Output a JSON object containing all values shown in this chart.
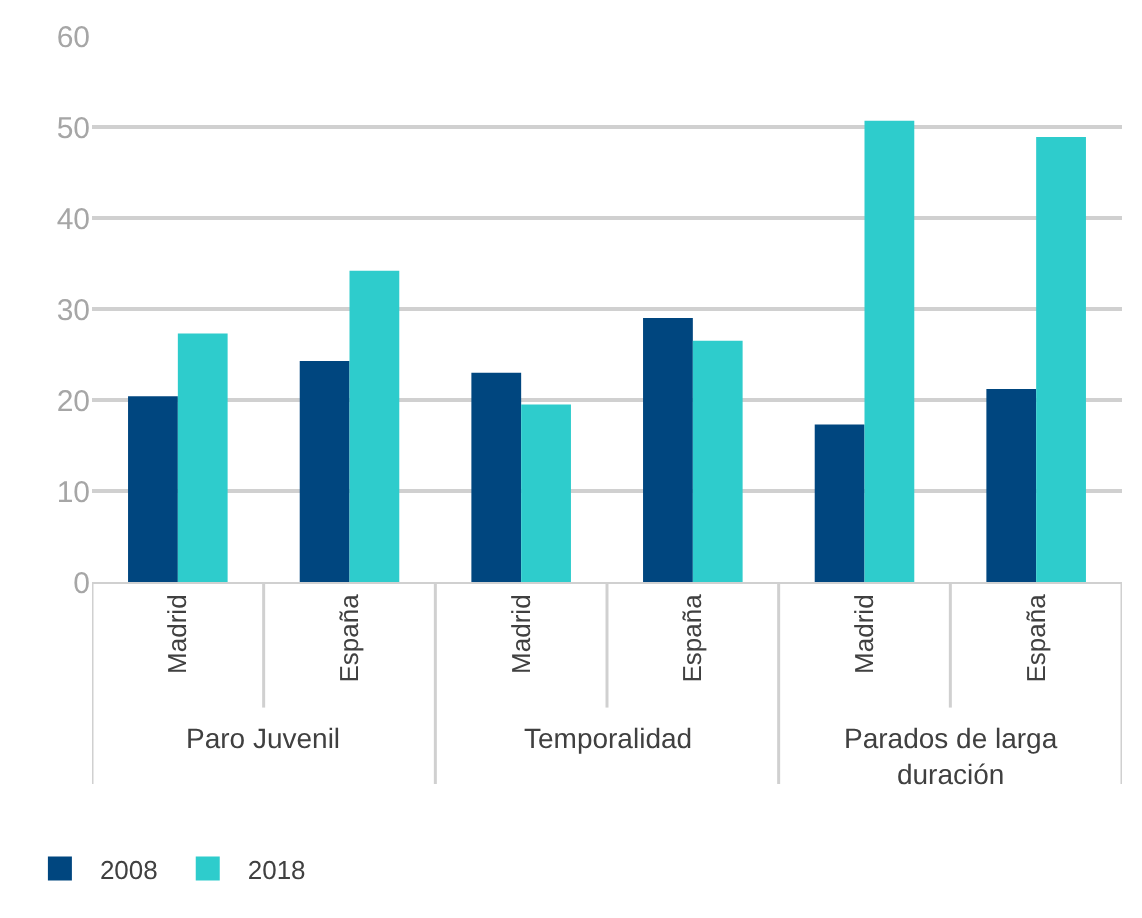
{
  "chart_data": {
    "type": "bar",
    "categories": [
      "Madrid",
      "España",
      "Madrid",
      "España",
      "Madrid",
      "España"
    ],
    "annotations": [
      "Paro Juvenil",
      "Temporalidad",
      "Parados de larga duración"
    ],
    "series": [
      {
        "name": "2008",
        "color": "#00467f",
        "values": [
          20.4,
          24.3,
          23.0,
          29.0,
          17.3,
          21.2
        ]
      },
      {
        "name": "2018",
        "color": "#2ecccc",
        "values": [
          27.3,
          34.2,
          19.5,
          26.5,
          50.7,
          48.9
        ]
      }
    ],
    "ylim": [
      0,
      60
    ],
    "yticks": [
      0,
      10,
      20,
      30,
      40,
      50,
      60
    ],
    "grid": "y",
    "legend": "bottom left"
  }
}
